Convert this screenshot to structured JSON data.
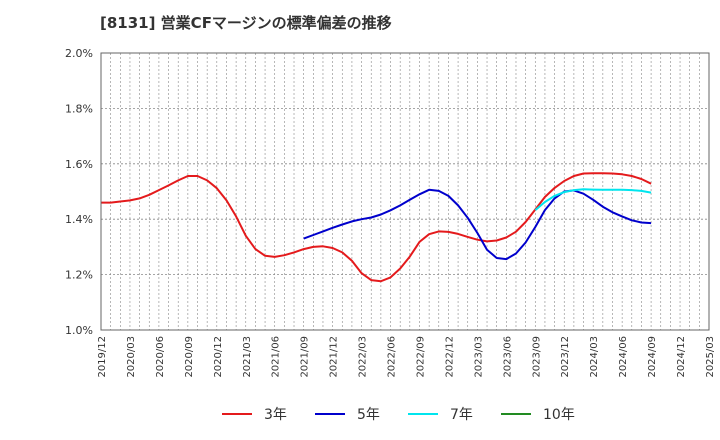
{
  "chart_data": {
    "type": "line",
    "title": "[8131]  営業CFマージンの標準偏差の推移",
    "xlabel": "",
    "ylabel": "",
    "ylim": [
      1.0,
      2.0
    ],
    "y_ticks": [
      "1.0%",
      "1.2%",
      "1.4%",
      "1.6%",
      "1.8%",
      "2.0%"
    ],
    "y_tick_values": [
      1.0,
      1.2,
      1.4,
      1.6,
      1.8,
      2.0
    ],
    "x_ticks": [
      "2019/12",
      "2020/03",
      "2020/06",
      "2020/09",
      "2020/12",
      "2021/03",
      "2021/06",
      "2021/09",
      "2021/12",
      "2022/03",
      "2022/06",
      "2022/09",
      "2022/12",
      "2023/03",
      "2023/06",
      "2023/09",
      "2023/12",
      "2024/03",
      "2024/06",
      "2024/09",
      "2024/12",
      "2025/03"
    ],
    "grid": true,
    "legend_position": "bottom",
    "series": [
      {
        "name": "3年",
        "color": "#e41a1c",
        "x": [
          "2019/12",
          "2020/01",
          "2020/02",
          "2020/03",
          "2020/04",
          "2020/05",
          "2020/06",
          "2020/07",
          "2020/08",
          "2020/09",
          "2020/10",
          "2020/11",
          "2020/12",
          "2021/01",
          "2021/02",
          "2021/03",
          "2021/04",
          "2021/05",
          "2021/06",
          "2021/07",
          "2021/08",
          "2021/09",
          "2021/10",
          "2021/11",
          "2021/12",
          "2022/01",
          "2022/02",
          "2022/03",
          "2022/04",
          "2022/05",
          "2022/06",
          "2022/07",
          "2022/08",
          "2022/09",
          "2022/10",
          "2022/11",
          "2022/12",
          "2023/01",
          "2023/02",
          "2023/03",
          "2023/04",
          "2023/05",
          "2023/06",
          "2023/07",
          "2023/08",
          "2023/09",
          "2023/10",
          "2023/11",
          "2023/12",
          "2024/01",
          "2024/02",
          "2024/03",
          "2024/04",
          "2024/05",
          "2024/06",
          "2024/07",
          "2024/08",
          "2024/09"
        ],
        "values": [
          1.46,
          1.46,
          1.464,
          1.468,
          1.475,
          1.488,
          1.505,
          1.522,
          1.54,
          1.556,
          1.556,
          1.54,
          1.512,
          1.468,
          1.41,
          1.34,
          1.292,
          1.268,
          1.264,
          1.27,
          1.28,
          1.292,
          1.3,
          1.302,
          1.296,
          1.28,
          1.25,
          1.205,
          1.18,
          1.176,
          1.19,
          1.222,
          1.265,
          1.318,
          1.346,
          1.356,
          1.354,
          1.347,
          1.336,
          1.326,
          1.32,
          1.323,
          1.334,
          1.355,
          1.39,
          1.435,
          1.48,
          1.513,
          1.538,
          1.556,
          1.565,
          1.566,
          1.566,
          1.565,
          1.562,
          1.556,
          1.545,
          1.528
        ]
      },
      {
        "name": "5年",
        "color": "#0000cc",
        "x": [
          "2021/09",
          "2021/10",
          "2021/11",
          "2021/12",
          "2022/01",
          "2022/02",
          "2022/03",
          "2022/04",
          "2022/05",
          "2022/06",
          "2022/07",
          "2022/08",
          "2022/09",
          "2022/10",
          "2022/11",
          "2022/12",
          "2023/01",
          "2023/02",
          "2023/03",
          "2023/04",
          "2023/05",
          "2023/06",
          "2023/07",
          "2023/08",
          "2023/09",
          "2023/10",
          "2023/11",
          "2023/12",
          "2024/01",
          "2024/02",
          "2024/03",
          "2024/04",
          "2024/05",
          "2024/06",
          "2024/07",
          "2024/08",
          "2024/09"
        ],
        "values": [
          1.33,
          1.343,
          1.356,
          1.369,
          1.381,
          1.392,
          1.4,
          1.406,
          1.417,
          1.432,
          1.45,
          1.47,
          1.49,
          1.506,
          1.502,
          1.484,
          1.45,
          1.405,
          1.35,
          1.29,
          1.26,
          1.256,
          1.276,
          1.316,
          1.372,
          1.433,
          1.475,
          1.5,
          1.504,
          1.492,
          1.47,
          1.445,
          1.425,
          1.41,
          1.396,
          1.388,
          1.386
        ]
      },
      {
        "name": "7年",
        "color": "#00e5ee",
        "x": [
          "2023/09",
          "2023/10",
          "2023/11",
          "2023/12",
          "2024/01",
          "2024/02",
          "2024/03",
          "2024/04",
          "2024/05",
          "2024/06",
          "2024/07",
          "2024/08",
          "2024/09"
        ],
        "values": [
          1.433,
          1.462,
          1.484,
          1.498,
          1.505,
          1.508,
          1.507,
          1.506,
          1.506,
          1.506,
          1.505,
          1.502,
          1.496
        ]
      },
      {
        "name": "10年",
        "color": "#228b22",
        "x": [],
        "values": []
      }
    ]
  }
}
